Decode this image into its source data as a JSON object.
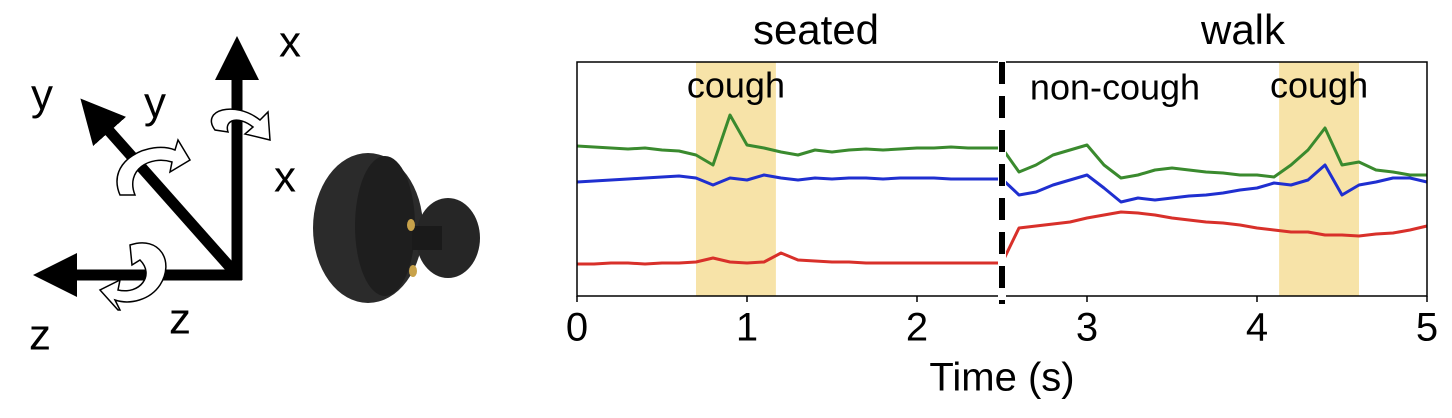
{
  "diagram": {
    "axes": [
      "x",
      "y",
      "z"
    ],
    "rotations": [
      "x",
      "y",
      "z"
    ]
  },
  "chart_data": {
    "type": "line",
    "xlabel": "Time (s)",
    "segments": [
      "seated",
      "walk"
    ],
    "divider": 2.5,
    "regions": [
      {
        "label": "cough",
        "x": [
          0.7,
          1.17
        ]
      },
      {
        "label": "cough",
        "x": [
          4.13,
          4.6
        ]
      }
    ],
    "annotations": [
      "non-cough"
    ],
    "x": [
      0,
      0.1,
      0.2,
      0.3,
      0.4,
      0.5,
      0.6,
      0.7,
      0.8,
      0.9,
      1,
      1.1,
      1.2,
      1.3,
      1.4,
      1.5,
      1.6,
      1.7,
      1.8,
      1.9,
      2,
      2.1,
      2.2,
      2.3,
      2.4,
      2.5,
      2.6,
      2.7,
      2.8,
      2.9,
      3,
      3.1,
      3.2,
      3.3,
      3.4,
      3.5,
      3.6,
      3.7,
      3.8,
      3.9,
      4,
      4.1,
      4.2,
      4.3,
      4.4,
      4.5,
      4.6,
      4.7,
      4.8,
      4.9,
      5
    ],
    "series": [
      {
        "color": "#3a8a2e",
        "values": [
          150,
          149,
          148,
          147,
          148,
          146,
          145,
          141,
          131,
          181,
          151,
          148,
          144,
          141,
          146,
          144,
          146,
          147,
          146,
          147,
          148,
          148,
          149,
          148,
          148,
          148,
          124,
          131,
          141,
          146,
          151,
          131,
          118,
          121,
          126,
          128,
          126,
          124,
          123,
          121,
          121,
          119,
          131,
          146,
          168,
          131,
          134,
          126,
          124,
          121,
          121
        ]
      },
      {
        "color": "#1f2fd0",
        "values": [
          114,
          115,
          116,
          117,
          118,
          119,
          120,
          118,
          111,
          118,
          116,
          121,
          118,
          116,
          118,
          117,
          118,
          118,
          117,
          118,
          118,
          118,
          117,
          117,
          117,
          117,
          101,
          104,
          111,
          116,
          121,
          108,
          94,
          98,
          96,
          98,
          100,
          101,
          103,
          106,
          108,
          113,
          111,
          116,
          131,
          101,
          111,
          114,
          118,
          118,
          114
        ]
      },
      {
        "color": "#d8302a",
        "values": [
          32,
          32,
          33,
          33,
          32,
          33,
          33,
          34,
          38,
          34,
          33,
          34,
          43,
          36,
          35,
          34,
          34,
          33,
          33,
          33,
          33,
          33,
          33,
          33,
          33,
          33,
          68,
          70,
          72,
          74,
          78,
          81,
          84,
          83,
          81,
          78,
          76,
          74,
          73,
          71,
          68,
          66,
          64,
          64,
          61,
          61,
          60,
          62,
          63,
          66,
          70
        ]
      }
    ],
    "xlim": [
      0,
      5
    ],
    "xticks": [
      0,
      1,
      2,
      3,
      4,
      5
    ],
    "ylim": [
      0,
      234
    ],
    "region_color": "#f7e3a8"
  }
}
